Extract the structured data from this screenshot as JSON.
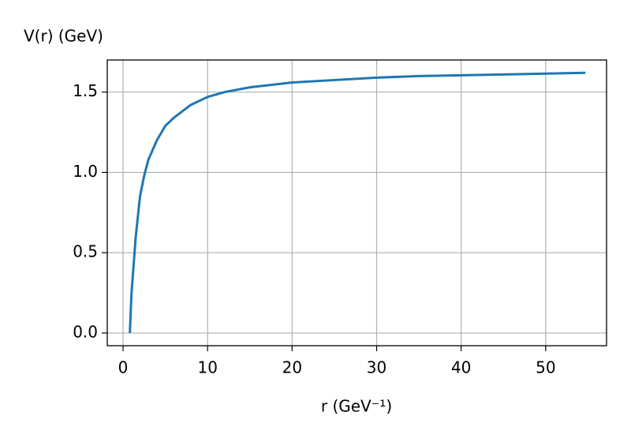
{
  "chart_data": {
    "type": "line",
    "x_label": "r (GeV⁻¹)",
    "y_label": "V(r) (GeV)",
    "x": [
      0.8,
      1,
      1.5,
      2,
      2.5,
      3,
      4,
      5,
      6,
      7,
      8,
      10,
      12,
      15,
      20,
      25,
      30,
      35,
      40,
      45,
      50,
      54.7
    ],
    "series": [
      {
        "color": "#1f77b4",
        "values": [
          0,
          0.25,
          0.6,
          0.85,
          0.98,
          1.08,
          1.2,
          1.29,
          1.34,
          1.38,
          1.42,
          1.47,
          1.5,
          1.53,
          1.56,
          1.575,
          1.59,
          1.6,
          1.605,
          1.61,
          1.615,
          1.62
        ]
      }
    ],
    "xlim": [
      -1.87,
      57.2
    ],
    "ylim": [
      -0.079,
      1.7
    ],
    "xticks": [
      0,
      10,
      20,
      30,
      40,
      50
    ],
    "yticks": [
      {
        "value": 0,
        "label": "0.0"
      },
      0.5,
      {
        "value": 1,
        "label": "1.0"
      },
      1.5
    ],
    "grid": true
  }
}
